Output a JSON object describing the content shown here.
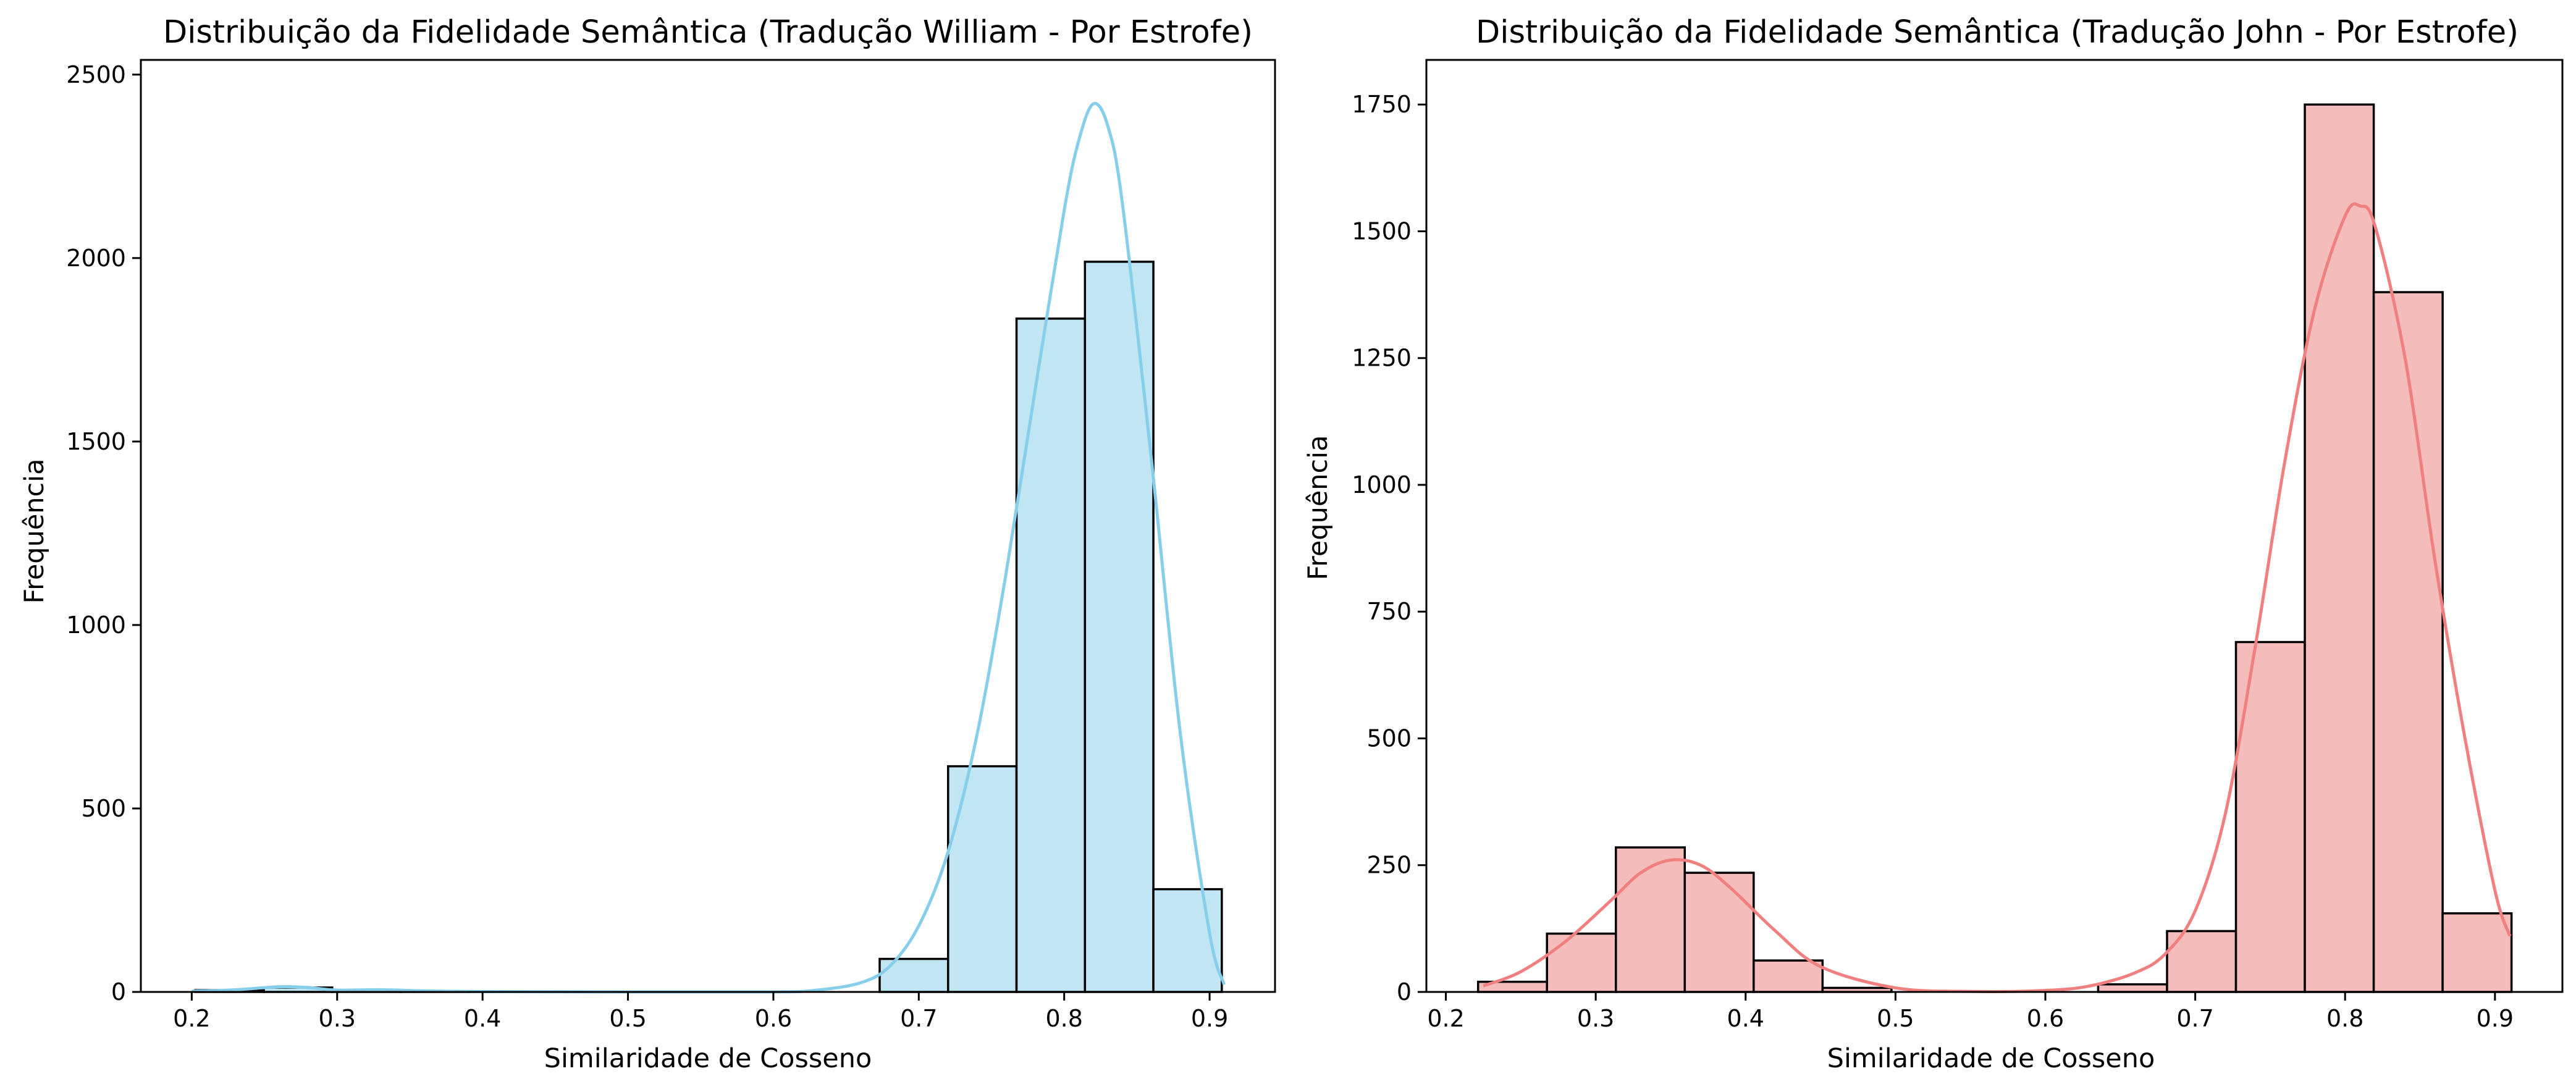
{
  "chart_data": [
    {
      "type": "histogram",
      "title": "Distribuição da Fidelidade Semântica (Tradução William - Por Estrofe)",
      "xlabel": "Similaridade de Cosseno",
      "ylabel": "Frequência",
      "xlim": [
        0.165,
        0.945
      ],
      "ylim": [
        0,
        2540
      ],
      "xticks": [
        0.2,
        0.3,
        0.4,
        0.5,
        0.6,
        0.7,
        0.8,
        0.9
      ],
      "xtick_labels": [
        "0.2",
        "0.3",
        "0.4",
        "0.5",
        "0.6",
        "0.7",
        "0.8",
        "0.9"
      ],
      "yticks": [
        0,
        500,
        1000,
        1500,
        2000,
        2500
      ],
      "ytick_labels": [
        "0",
        "500",
        "1000",
        "1500",
        "2000",
        "2500"
      ],
      "bin_start": 0.2025,
      "bin_width": 0.04706,
      "bin_values": [
        5,
        12,
        3,
        2,
        1,
        0,
        0,
        0,
        0,
        0,
        90,
        615,
        1835,
        1990,
        280
      ],
      "kde": {
        "x": [
          0.2,
          0.23,
          0.26,
          0.28,
          0.3,
          0.33,
          0.36,
          0.4,
          0.5,
          0.6,
          0.63,
          0.66,
          0.68,
          0.7,
          0.72,
          0.74,
          0.76,
          0.78,
          0.8,
          0.81,
          0.82,
          0.83,
          0.84,
          0.86,
          0.88,
          0.9,
          0.91
        ],
        "y": [
          2,
          6,
          14,
          12,
          5,
          6,
          3,
          1,
          0,
          0,
          5,
          25,
          70,
          180,
          380,
          700,
          1140,
          1640,
          2130,
          2320,
          2420,
          2360,
          2150,
          1450,
          700,
          160,
          20
        ]
      },
      "colors": {
        "bar_fill": "#c2e5f4",
        "bar_edge": "#000000",
        "kde_line": "#87ceeb"
      }
    },
    {
      "type": "histogram",
      "title": "Distribuição da Fidelidade Semântica (Tradução John - Por Estrofe)",
      "xlabel": "Similaridade de Cosseno",
      "ylabel": "Frequência",
      "xlim": [
        0.187,
        0.945
      ],
      "ylim": [
        0,
        1838
      ],
      "xticks": [
        0.2,
        0.3,
        0.4,
        0.5,
        0.6,
        0.7,
        0.8,
        0.9
      ],
      "xtick_labels": [
        "0.2",
        "0.3",
        "0.4",
        "0.5",
        "0.6",
        "0.7",
        "0.8",
        "0.9"
      ],
      "yticks": [
        0,
        250,
        500,
        750,
        1000,
        1250,
        1500,
        1750
      ],
      "ytick_labels": [
        "0",
        "250",
        "500",
        "750",
        "1000",
        "1250",
        "1500",
        "1750"
      ],
      "bin_start": 0.2215,
      "bin_width": 0.04597,
      "bin_values": [
        20,
        115,
        285,
        235,
        62,
        8,
        0,
        0,
        0,
        15,
        120,
        690,
        1750,
        1380,
        155
      ],
      "kde": {
        "x": [
          0.225,
          0.25,
          0.28,
          0.31,
          0.33,
          0.35,
          0.37,
          0.39,
          0.42,
          0.45,
          0.5,
          0.55,
          0.6,
          0.63,
          0.66,
          0.68,
          0.7,
          0.72,
          0.74,
          0.76,
          0.78,
          0.8,
          0.81,
          0.82,
          0.84,
          0.86,
          0.88,
          0.9,
          0.91
        ],
        "y": [
          12,
          40,
          100,
          180,
          235,
          260,
          250,
          205,
          120,
          50,
          8,
          1,
          3,
          12,
          38,
          75,
          160,
          350,
          680,
          1050,
          1350,
          1530,
          1550,
          1510,
          1250,
          850,
          500,
          200,
          110
        ]
      },
      "colors": {
        "bar_fill": "#f5bcbc",
        "bar_edge": "#000000",
        "kde_line": "#f08080"
      }
    }
  ]
}
